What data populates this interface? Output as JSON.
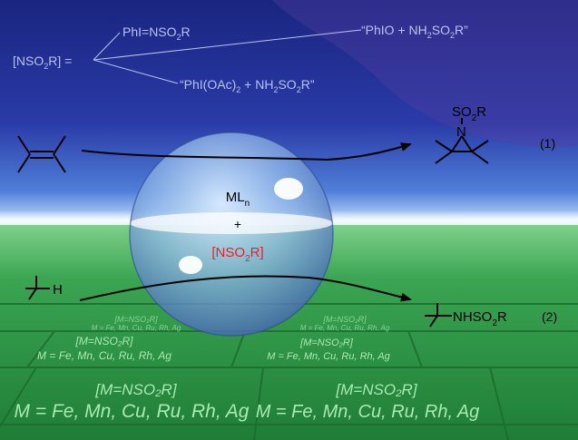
{
  "reagent": {
    "label": "[NSO",
    "label_sub": "2",
    "label_tail": "R] =",
    "option1": {
      "main": "PhI=NSO",
      "sub": "2",
      "tail": "R"
    },
    "option2": {
      "main": "“PhIO + NH",
      "sub1": "2",
      "mid": "SO",
      "sub2": "2",
      "tail": "R”"
    },
    "option3": {
      "main": "“PhI(OAc)",
      "sub1": "2",
      "mid": " + NH",
      "sub2": "2",
      "mid2": "SO",
      "sub3": "2",
      "tail": "R”"
    }
  },
  "catalyst": {
    "ml": "ML",
    "ml_sub": "n",
    "plus": "+",
    "nitrene": "[NSO",
    "nitrene_sub": "2",
    "nitrene_tail": "R]"
  },
  "reaction1": {
    "product_group": "SO",
    "product_group_sub": "2",
    "product_group_tail": "R",
    "ring_atom": "N",
    "number": "(1)"
  },
  "reaction2": {
    "substrate_atom": "H",
    "product": "NHSO",
    "product_sub": "2",
    "product_tail": "R",
    "number": "(2)"
  },
  "tiles": {
    "formula": "[M=NSO₂R]",
    "metals": "M = Fe, Mn, Cu, Ru, Rh, Ag"
  },
  "colors": {
    "sky_top": "#1b2a8a",
    "sky_horizon": "#5a8fe0",
    "floor": "#2e9a48",
    "tile_text": "#9fe6a8",
    "nitrene_red": "#e8202a",
    "faint_text": "#b9c3f0"
  }
}
